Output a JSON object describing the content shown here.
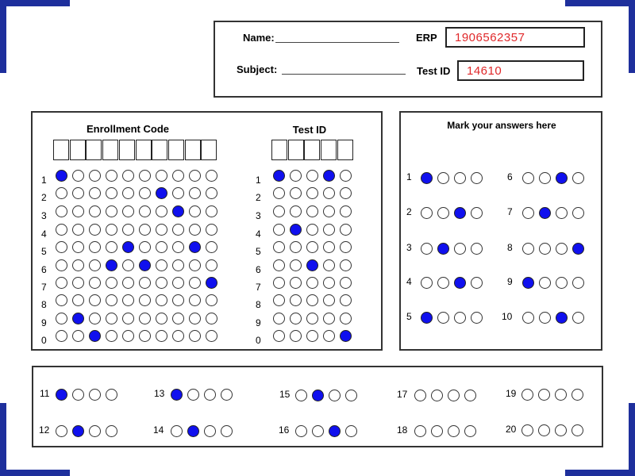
{
  "header": {
    "name_label": "Name:",
    "erp_label": "ERP",
    "erp_value": "1906562357",
    "subject_label": "Subject:",
    "testid_label": "Test ID",
    "testid_value": "14610"
  },
  "enrollment": {
    "title": "Enrollment Code",
    "row_labels": [
      "1",
      "2",
      "3",
      "4",
      "5",
      "6",
      "7",
      "8",
      "9",
      "0"
    ],
    "marks": [
      [
        0
      ],
      [
        6
      ],
      [
        7
      ],
      [],
      [
        4,
        8
      ],
      [
        3,
        5
      ],
      [
        9
      ],
      [],
      [
        1
      ],
      [
        2
      ]
    ]
  },
  "testid_grid": {
    "title": "Test ID",
    "row_labels": [
      "1",
      "2",
      "3",
      "4",
      "5",
      "6",
      "7",
      "8",
      "9",
      "0"
    ],
    "marks": [
      [
        0,
        3
      ],
      [],
      [],
      [
        1
      ],
      [],
      [
        2
      ],
      [],
      [],
      [],
      [
        4
      ]
    ]
  },
  "answers": {
    "title": "Mark your answers here",
    "questions": [
      {
        "label": "1",
        "marked": [
          0
        ]
      },
      {
        "label": "2",
        "marked": [
          2
        ]
      },
      {
        "label": "3",
        "marked": [
          1
        ]
      },
      {
        "label": "4",
        "marked": [
          2
        ]
      },
      {
        "label": "5",
        "marked": [
          0
        ]
      },
      {
        "label": "6",
        "marked": [
          2
        ]
      },
      {
        "label": "7",
        "marked": [
          1
        ]
      },
      {
        "label": "8",
        "marked": [
          3
        ]
      },
      {
        "label": "9",
        "marked": [
          0
        ]
      },
      {
        "label": "10",
        "marked": [
          2
        ]
      },
      {
        "label": "11",
        "marked": [
          0
        ]
      },
      {
        "label": "12",
        "marked": [
          1
        ]
      },
      {
        "label": "13",
        "marked": [
          0
        ]
      },
      {
        "label": "14",
        "marked": [
          1
        ]
      },
      {
        "label": "15",
        "marked": [
          1
        ]
      },
      {
        "label": "16",
        "marked": [
          2
        ]
      },
      {
        "label": "17",
        "marked": []
      },
      {
        "label": "18",
        "marked": []
      },
      {
        "label": "19",
        "marked": []
      },
      {
        "label": "20",
        "marked": []
      }
    ]
  },
  "colors": {
    "corner": "#1e2f9c",
    "fill": "#1010ee",
    "handwriting": "#e0282a"
  }
}
